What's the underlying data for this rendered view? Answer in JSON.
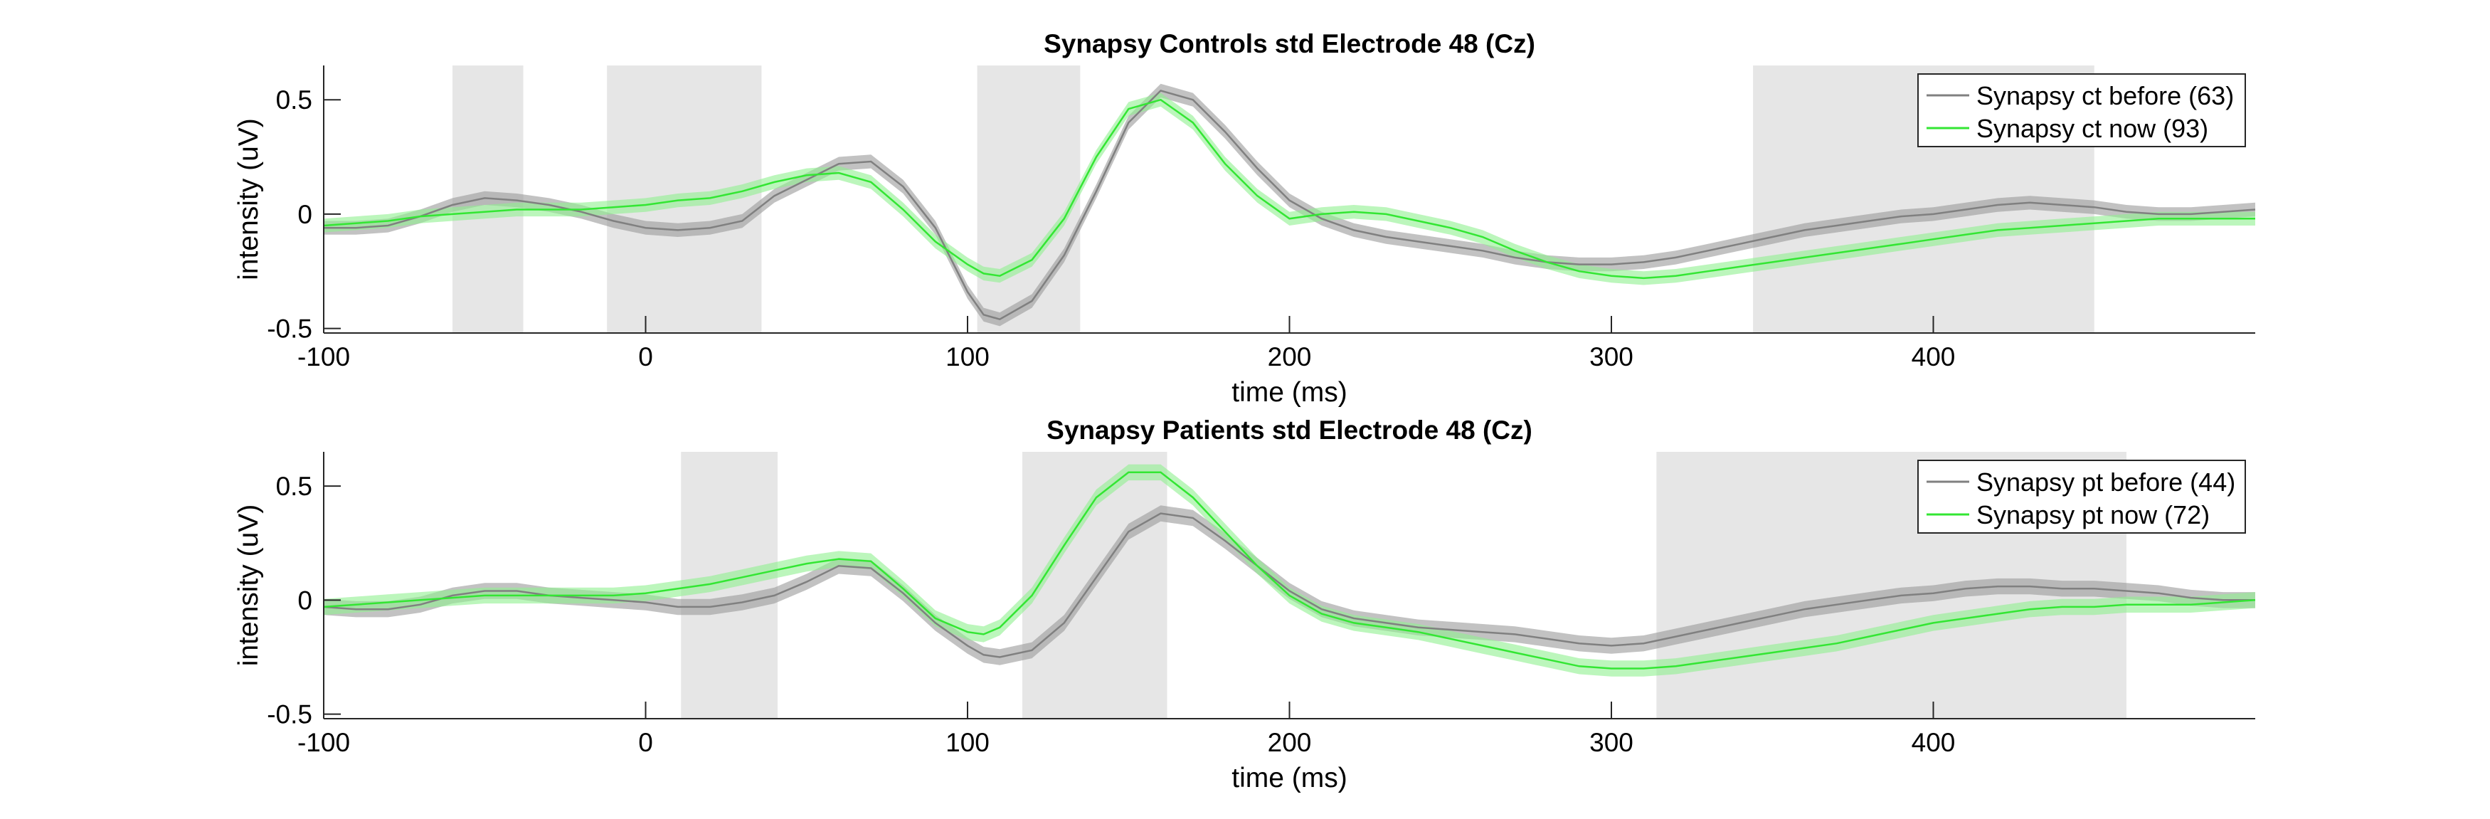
{
  "chart_data": [
    {
      "type": "line",
      "title": "Synapsy Controls std Electrode 48 (Cz)",
      "xlabel": "time (ms)",
      "ylabel": "intensity (uV)",
      "xlim": [
        -100,
        500
      ],
      "ylim": [
        -0.52,
        0.65
      ],
      "xticks": [
        "-100",
        "0",
        "100",
        "200",
        "300",
        "400"
      ],
      "yticks": [
        "-0.5",
        "0",
        "0.5"
      ],
      "grid": false,
      "legend_position": "top-right",
      "shaded_intervals_ms": [
        [
          -60,
          -38
        ],
        [
          -12,
          36
        ],
        [
          103,
          135
        ],
        [
          344,
          450
        ]
      ],
      "series": [
        {
          "name": "Synapsy ct before (63)",
          "color": "#808080",
          "band_color": "#9a9a9a",
          "x": [
            -100,
            -90,
            -80,
            -70,
            -60,
            -50,
            -40,
            -30,
            -20,
            -10,
            0,
            10,
            20,
            30,
            40,
            50,
            60,
            70,
            80,
            90,
            100,
            105,
            110,
            120,
            130,
            140,
            150,
            160,
            170,
            180,
            190,
            200,
            210,
            220,
            230,
            240,
            250,
            260,
            270,
            280,
            290,
            300,
            310,
            320,
            330,
            340,
            350,
            360,
            370,
            380,
            390,
            400,
            410,
            420,
            430,
            440,
            450,
            460,
            470,
            480,
            490,
            500
          ],
          "values": [
            -0.06,
            -0.06,
            -0.05,
            -0.01,
            0.04,
            0.07,
            0.06,
            0.04,
            0.01,
            -0.03,
            -0.06,
            -0.07,
            -0.06,
            -0.03,
            0.08,
            0.15,
            0.22,
            0.23,
            0.12,
            -0.06,
            -0.34,
            -0.44,
            -0.46,
            -0.38,
            -0.18,
            0.1,
            0.4,
            0.54,
            0.5,
            0.36,
            0.2,
            0.06,
            -0.02,
            -0.07,
            -0.1,
            -0.12,
            -0.14,
            -0.16,
            -0.19,
            -0.21,
            -0.22,
            -0.22,
            -0.21,
            -0.19,
            -0.16,
            -0.13,
            -0.1,
            -0.07,
            -0.05,
            -0.03,
            -0.01,
            0.0,
            0.02,
            0.04,
            0.05,
            0.04,
            0.03,
            0.01,
            0.0,
            0.0,
            0.01,
            0.02
          ],
          "band": 0.03
        },
        {
          "name": "Synapsy ct now (93)",
          "color": "#33e633",
          "band_color": "#8ff08f",
          "x": [
            -100,
            -90,
            -80,
            -70,
            -60,
            -50,
            -40,
            -30,
            -20,
            -10,
            0,
            10,
            20,
            30,
            40,
            50,
            60,
            70,
            80,
            90,
            100,
            105,
            110,
            120,
            130,
            140,
            150,
            160,
            170,
            180,
            190,
            200,
            210,
            220,
            230,
            240,
            250,
            260,
            270,
            280,
            290,
            300,
            310,
            320,
            330,
            340,
            350,
            360,
            370,
            380,
            390,
            400,
            410,
            420,
            430,
            440,
            450,
            460,
            470,
            480,
            490,
            500
          ],
          "values": [
            -0.05,
            -0.04,
            -0.03,
            -0.01,
            0.0,
            0.01,
            0.02,
            0.02,
            0.02,
            0.03,
            0.04,
            0.06,
            0.07,
            0.1,
            0.14,
            0.17,
            0.18,
            0.14,
            0.02,
            -0.12,
            -0.22,
            -0.26,
            -0.27,
            -0.2,
            -0.02,
            0.25,
            0.46,
            0.5,
            0.4,
            0.22,
            0.08,
            -0.02,
            0.0,
            0.01,
            0.0,
            -0.03,
            -0.06,
            -0.1,
            -0.16,
            -0.21,
            -0.25,
            -0.27,
            -0.28,
            -0.27,
            -0.25,
            -0.23,
            -0.21,
            -0.19,
            -0.17,
            -0.15,
            -0.13,
            -0.11,
            -0.09,
            -0.07,
            -0.06,
            -0.05,
            -0.04,
            -0.03,
            -0.02,
            -0.02,
            -0.02,
            -0.02
          ],
          "band": 0.03
        }
      ]
    },
    {
      "type": "line",
      "title": "Synapsy Patients std Electrode 48 (Cz)",
      "xlabel": "time (ms)",
      "ylabel": "intensity (uV)",
      "xlim": [
        -100,
        500
      ],
      "ylim": [
        -0.52,
        0.65
      ],
      "xticks": [
        "-100",
        "0",
        "100",
        "200",
        "300",
        "400"
      ],
      "yticks": [
        "-0.5",
        "0",
        "0.5"
      ],
      "grid": false,
      "legend_position": "top-right",
      "shaded_intervals_ms": [
        [
          11,
          41
        ],
        [
          117,
          162
        ],
        [
          314,
          460
        ]
      ],
      "series": [
        {
          "name": "Synapsy pt before (44)",
          "color": "#808080",
          "band_color": "#9a9a9a",
          "x": [
            -100,
            -90,
            -80,
            -70,
            -60,
            -50,
            -40,
            -30,
            -20,
            -10,
            0,
            10,
            20,
            30,
            40,
            50,
            60,
            70,
            80,
            90,
            100,
            105,
            110,
            120,
            130,
            140,
            150,
            160,
            170,
            180,
            190,
            200,
            210,
            220,
            230,
            240,
            250,
            260,
            270,
            280,
            290,
            300,
            310,
            320,
            330,
            340,
            350,
            360,
            370,
            380,
            390,
            400,
            410,
            420,
            430,
            440,
            450,
            460,
            470,
            480,
            490,
            500
          ],
          "values": [
            -0.03,
            -0.04,
            -0.04,
            -0.02,
            0.02,
            0.04,
            0.04,
            0.02,
            0.01,
            0.0,
            -0.01,
            -0.03,
            -0.03,
            -0.01,
            0.02,
            0.08,
            0.15,
            0.14,
            0.03,
            -0.1,
            -0.2,
            -0.24,
            -0.25,
            -0.22,
            -0.1,
            0.1,
            0.3,
            0.38,
            0.36,
            0.26,
            0.15,
            0.04,
            -0.04,
            -0.08,
            -0.1,
            -0.12,
            -0.13,
            -0.14,
            -0.15,
            -0.17,
            -0.19,
            -0.2,
            -0.19,
            -0.16,
            -0.13,
            -0.1,
            -0.07,
            -0.04,
            -0.02,
            0.0,
            0.02,
            0.03,
            0.05,
            0.06,
            0.06,
            0.05,
            0.05,
            0.04,
            0.03,
            0.01,
            0.0,
            0.0
          ],
          "band": 0.035
        },
        {
          "name": "Synapsy pt now (72)",
          "color": "#33e633",
          "band_color": "#8ff08f",
          "x": [
            -100,
            -90,
            -80,
            -70,
            -60,
            -50,
            -40,
            -30,
            -20,
            -10,
            0,
            10,
            20,
            30,
            40,
            50,
            60,
            70,
            80,
            90,
            100,
            105,
            110,
            120,
            130,
            140,
            150,
            160,
            170,
            180,
            190,
            200,
            210,
            220,
            230,
            240,
            250,
            260,
            270,
            280,
            290,
            300,
            310,
            320,
            330,
            340,
            350,
            360,
            370,
            380,
            390,
            400,
            410,
            420,
            430,
            440,
            450,
            460,
            470,
            480,
            490,
            500
          ],
          "values": [
            -0.03,
            -0.02,
            -0.01,
            0.0,
            0.01,
            0.02,
            0.02,
            0.02,
            0.02,
            0.02,
            0.03,
            0.05,
            0.07,
            0.1,
            0.13,
            0.16,
            0.18,
            0.17,
            0.05,
            -0.08,
            -0.14,
            -0.15,
            -0.12,
            0.02,
            0.24,
            0.45,
            0.56,
            0.56,
            0.45,
            0.3,
            0.15,
            0.02,
            -0.06,
            -0.1,
            -0.12,
            -0.14,
            -0.17,
            -0.2,
            -0.23,
            -0.26,
            -0.29,
            -0.3,
            -0.3,
            -0.29,
            -0.27,
            -0.25,
            -0.23,
            -0.21,
            -0.19,
            -0.16,
            -0.13,
            -0.1,
            -0.08,
            -0.06,
            -0.04,
            -0.03,
            -0.03,
            -0.02,
            -0.02,
            -0.02,
            -0.01,
            0.0
          ],
          "band": 0.035
        }
      ]
    }
  ]
}
